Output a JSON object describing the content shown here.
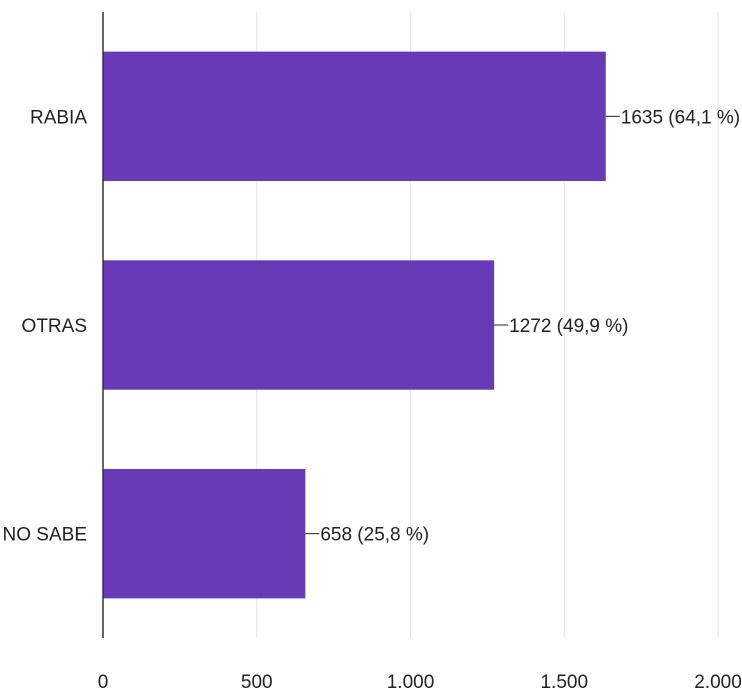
{
  "chart_data": {
    "type": "bar",
    "orientation": "horizontal",
    "categories": [
      "RABIA",
      "OTRAS",
      "NO SABE"
    ],
    "values": [
      1635,
      1272,
      658
    ],
    "data_labels": [
      "1635 (64,1 %)",
      "1272 (49,9 %)",
      "658 (25,8 %)"
    ],
    "xlim": [
      0,
      2000
    ],
    "x_ticks": [
      0,
      500,
      1000,
      1500,
      2000
    ],
    "x_tick_labels": [
      "0",
      "500",
      "1.000",
      "1.500",
      "2.000"
    ],
    "grid": true,
    "colors": {
      "bar": "#673ab7",
      "grid": "#e6e6e6",
      "axis": "#333333",
      "text": "#222222"
    }
  }
}
